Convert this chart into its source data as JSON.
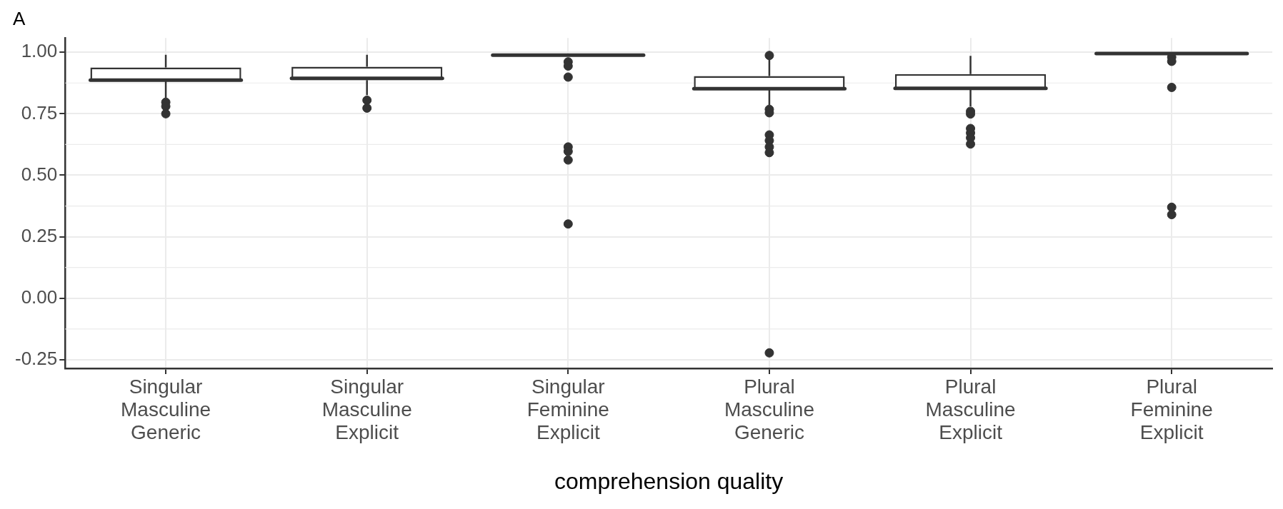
{
  "chart_data": {
    "type": "box",
    "title": "A",
    "xlabel": "comprehension quality",
    "categories": [
      "Singular Masculine Generic",
      "Singular Masculine Explicit",
      "Singular Feminine Explicit",
      "Plural Masculine Generic",
      "Plural Masculine Explicit",
      "Plural Feminine Explicit"
    ],
    "boxes": [
      {
        "low": 0.815,
        "q1": 0.883,
        "median": 0.887,
        "q3": 0.938,
        "high": 0.99,
        "outliers": [
          0.797,
          0.78,
          0.75
        ]
      },
      {
        "low": 0.826,
        "q1": 0.887,
        "median": 0.894,
        "q3": 0.941,
        "high": 0.99,
        "outliers": [
          0.805,
          0.773
        ]
      },
      {
        "low": 0.988,
        "q1": 0.988,
        "median": 0.988,
        "q3": 0.988,
        "high": 0.988,
        "outliers": [
          0.961,
          0.944,
          0.899,
          0.615,
          0.597,
          0.562,
          0.302
        ]
      },
      {
        "low": 0.785,
        "q1": 0.848,
        "median": 0.852,
        "q3": 0.903,
        "high": 0.97,
        "outliers": [
          0.987,
          0.768,
          0.754,
          0.664,
          0.641,
          0.615,
          0.592,
          -0.222
        ]
      },
      {
        "low": 0.78,
        "q1": 0.85,
        "median": 0.853,
        "q3": 0.911,
        "high": 0.985,
        "outliers": [
          0.76,
          0.749,
          0.69,
          0.672,
          0.652,
          0.627
        ]
      },
      {
        "low": 0.995,
        "q1": 0.995,
        "median": 0.995,
        "q3": 0.995,
        "high": 0.995,
        "outliers": [
          0.98,
          0.963,
          0.857,
          0.37,
          0.34
        ]
      }
    ],
    "ylim": [
      -0.285,
      1.058
    ],
    "yticks": [
      {
        "value": -0.25,
        "label": "-0.25"
      },
      {
        "value": 0,
        "label": "0.00"
      },
      {
        "value": 0.25,
        "label": "0.25"
      },
      {
        "value": 0.5,
        "label": "0.50"
      },
      {
        "value": 0.75,
        "label": "0.75"
      },
      {
        "value": 1,
        "label": "1.00"
      }
    ],
    "grid": true
  }
}
